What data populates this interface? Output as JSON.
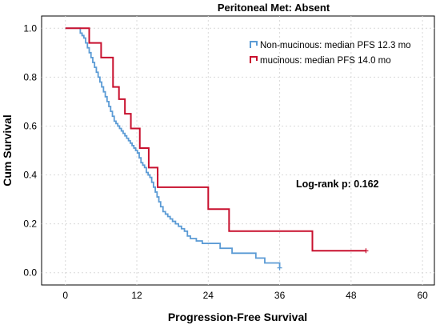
{
  "chart_data": {
    "type": "line",
    "title": "Peritoneal  Met: Absent",
    "xlabel": "Progression-Free Survival",
    "ylabel": "Cum Survival",
    "xlim": [
      -4,
      62
    ],
    "ylim": [
      -0.05,
      1.05
    ],
    "x_ticks": [
      0,
      12,
      24,
      36,
      48,
      60
    ],
    "y_ticks": [
      0.0,
      0.2,
      0.4,
      0.6,
      0.8,
      1.0
    ],
    "x_tick_labels": [
      "0",
      "12",
      "24",
      "36",
      "48",
      "60"
    ],
    "y_tick_labels": [
      "0.0",
      "0.2",
      "0.4",
      "0.6",
      "0.8",
      "1.0"
    ],
    "grid": true,
    "legend_position": "top-right",
    "annotation": "Log-rank p: 0.162",
    "step": true,
    "series": [
      {
        "name": "Non-mucinous: median PFS 12.3 mo",
        "color": "#5b9bd5",
        "x": [
          0,
          2.5,
          2.8,
          3.1,
          3.4,
          3.7,
          4.0,
          4.3,
          4.6,
          4.9,
          5.2,
          5.5,
          5.8,
          6.1,
          6.4,
          6.7,
          7.0,
          7.3,
          7.6,
          7.9,
          8.2,
          8.5,
          8.8,
          9.1,
          9.4,
          9.7,
          10.0,
          10.3,
          10.6,
          10.9,
          11.2,
          11.5,
          11.8,
          12.1,
          12.4,
          12.7,
          13.0,
          13.3,
          13.6,
          13.9,
          14.2,
          14.5,
          14.8,
          15.1,
          15.4,
          15.7,
          16.0,
          16.4,
          16.8,
          17.2,
          17.6,
          18.0,
          18.5,
          19.0,
          19.5,
          20.0,
          20.5,
          21.0,
          22.0,
          23.0,
          24.5,
          26.0,
          28.0,
          30.0,
          32.0,
          33.5,
          36.0
        ],
        "y": [
          1.0,
          0.98,
          0.97,
          0.96,
          0.94,
          0.92,
          0.9,
          0.88,
          0.86,
          0.84,
          0.82,
          0.8,
          0.78,
          0.76,
          0.74,
          0.72,
          0.7,
          0.68,
          0.66,
          0.64,
          0.62,
          0.61,
          0.6,
          0.59,
          0.58,
          0.57,
          0.56,
          0.55,
          0.54,
          0.53,
          0.52,
          0.51,
          0.5,
          0.49,
          0.47,
          0.45,
          0.44,
          0.43,
          0.41,
          0.4,
          0.39,
          0.37,
          0.35,
          0.33,
          0.31,
          0.29,
          0.27,
          0.25,
          0.24,
          0.23,
          0.22,
          0.21,
          0.2,
          0.19,
          0.18,
          0.17,
          0.15,
          0.14,
          0.13,
          0.12,
          0.12,
          0.1,
          0.08,
          0.08,
          0.06,
          0.04,
          0.02
        ]
      },
      {
        "name": "mucinous: median PFS 14.0 mo",
        "color": "#c8102e",
        "x": [
          0,
          4.0,
          6.0,
          8.0,
          9.0,
          10.0,
          11.0,
          12.5,
          14.0,
          15.5,
          24.0,
          27.5,
          41.5,
          50.5
        ],
        "y": [
          1.0,
          0.94,
          0.88,
          0.76,
          0.71,
          0.65,
          0.59,
          0.51,
          0.43,
          0.35,
          0.26,
          0.17,
          0.09,
          0.09
        ]
      }
    ]
  }
}
